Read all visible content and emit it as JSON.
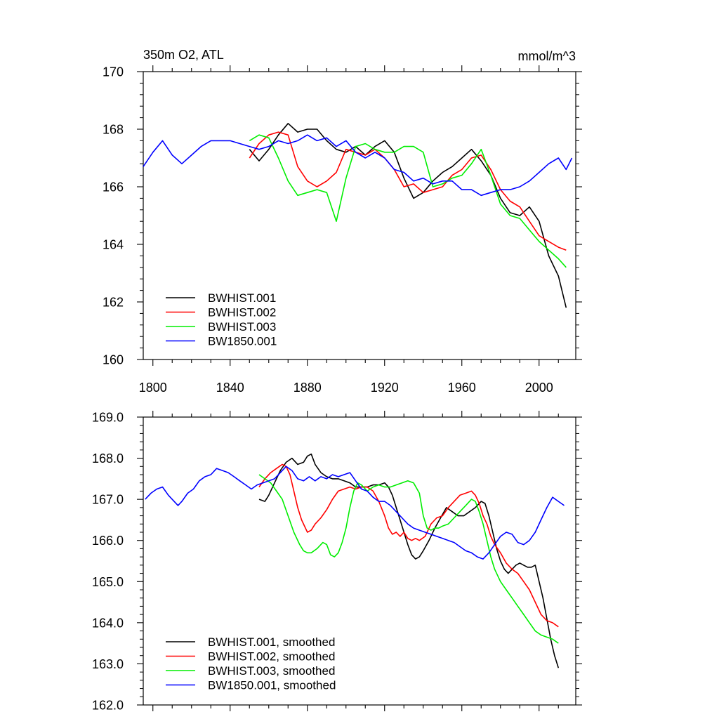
{
  "chart_data": [
    {
      "type": "line",
      "title_left": "350m O2, ATL",
      "title_right": "mmol/m^3",
      "xlim": [
        1795,
        2019
      ],
      "ylim": [
        160,
        170
      ],
      "xticks": [
        1800,
        1840,
        1880,
        1920,
        1960,
        2000
      ],
      "xtick_labels": [
        "1800",
        "1840",
        "1880",
        "1920",
        "1960",
        "2000"
      ],
      "yticks": [
        160,
        162,
        164,
        166,
        168,
        170
      ],
      "ytick_labels": [
        "160",
        "162",
        "164",
        "166",
        "168",
        "170"
      ],
      "legend_position": "bottom-left",
      "series": [
        {
          "name": "BWHIST.001",
          "color": "#000000",
          "x": [
            1850,
            1855,
            1860,
            1865,
            1870,
            1875,
            1880,
            1885,
            1890,
            1895,
            1900,
            1905,
            1910,
            1915,
            1920,
            1925,
            1930,
            1935,
            1940,
            1945,
            1950,
            1955,
            1960,
            1965,
            1970,
            1975,
            1980,
            1985,
            1990,
            1995,
            2000,
            2005,
            2010,
            2014
          ],
          "y": [
            167.3,
            166.9,
            167.3,
            167.8,
            168.2,
            167.9,
            168.0,
            168.0,
            167.6,
            167.3,
            167.2,
            167.4,
            167.1,
            167.4,
            167.6,
            167.2,
            166.3,
            165.6,
            165.8,
            166.2,
            166.5,
            166.7,
            167.0,
            167.3,
            166.9,
            166.4,
            165.6,
            165.1,
            165.0,
            165.3,
            164.8,
            163.6,
            162.9,
            161.8
          ]
        },
        {
          "name": "BWHIST.002",
          "color": "#ff0000",
          "x": [
            1850,
            1855,
            1860,
            1865,
            1870,
            1875,
            1880,
            1885,
            1890,
            1895,
            1900,
            1905,
            1910,
            1915,
            1920,
            1925,
            1930,
            1935,
            1940,
            1945,
            1950,
            1955,
            1960,
            1965,
            1970,
            1975,
            1980,
            1985,
            1990,
            1995,
            2000,
            2005,
            2010,
            2014
          ],
          "y": [
            167.0,
            167.5,
            167.8,
            167.9,
            167.8,
            166.7,
            166.2,
            166.0,
            166.2,
            166.5,
            167.3,
            167.2,
            167.1,
            167.3,
            167.0,
            166.6,
            166.0,
            166.1,
            165.8,
            165.9,
            166.0,
            166.4,
            166.6,
            167.0,
            167.1,
            166.6,
            165.9,
            165.5,
            165.3,
            164.8,
            164.3,
            164.1,
            163.9,
            163.8
          ]
        },
        {
          "name": "BWHIST.003",
          "color": "#00ee00",
          "x": [
            1850,
            1855,
            1860,
            1865,
            1870,
            1875,
            1880,
            1885,
            1890,
            1895,
            1900,
            1905,
            1910,
            1915,
            1920,
            1925,
            1930,
            1935,
            1940,
            1945,
            1950,
            1955,
            1960,
            1965,
            1970,
            1975,
            1980,
            1985,
            1990,
            1995,
            2000,
            2005,
            2010,
            2014
          ],
          "y": [
            167.6,
            167.8,
            167.7,
            167.0,
            166.2,
            165.7,
            165.8,
            165.9,
            165.8,
            164.8,
            166.3,
            167.4,
            167.5,
            167.3,
            167.2,
            167.2,
            167.4,
            167.4,
            167.2,
            166.0,
            166.1,
            166.3,
            166.4,
            166.8,
            167.3,
            166.4,
            165.4,
            165.0,
            164.9,
            164.5,
            164.1,
            163.8,
            163.5,
            163.2
          ]
        },
        {
          "name": "BW1850.001",
          "color": "#0000ff",
          "x": [
            1795,
            1800,
            1805,
            1810,
            1815,
            1820,
            1825,
            1830,
            1835,
            1840,
            1845,
            1850,
            1855,
            1860,
            1865,
            1870,
            1875,
            1880,
            1885,
            1890,
            1895,
            1900,
            1905,
            1910,
            1915,
            1920,
            1925,
            1930,
            1935,
            1940,
            1945,
            1950,
            1955,
            1960,
            1965,
            1970,
            1975,
            1980,
            1985,
            1990,
            1995,
            2000,
            2005,
            2010,
            2014,
            2017
          ],
          "y": [
            166.7,
            167.2,
            167.6,
            167.1,
            166.8,
            167.1,
            167.4,
            167.6,
            167.6,
            167.6,
            167.5,
            167.4,
            167.3,
            167.4,
            167.6,
            167.5,
            167.6,
            167.8,
            167.6,
            167.7,
            167.4,
            167.6,
            167.2,
            167.0,
            167.2,
            167.0,
            166.6,
            166.5,
            166.2,
            166.3,
            166.1,
            166.2,
            166.2,
            165.9,
            165.9,
            165.7,
            165.8,
            165.9,
            165.9,
            166.0,
            166.2,
            166.5,
            166.8,
            167.0,
            166.6,
            167.0
          ]
        }
      ]
    },
    {
      "type": "line",
      "xlim": [
        1795,
        2019
      ],
      "ylim": [
        162.0,
        169.0
      ],
      "xticks": [
        1800,
        1840,
        1880,
        1920,
        1960,
        2000
      ],
      "yticks": [
        162.0,
        163.0,
        164.0,
        165.0,
        166.0,
        167.0,
        168.0,
        169.0
      ],
      "ytick_labels": [
        "162.0",
        "163.0",
        "164.0",
        "165.0",
        "166.0",
        "167.0",
        "168.0",
        "169.0"
      ],
      "legend_position": "bottom-left",
      "series": [
        {
          "name": "BWHIST.001, smoothed",
          "color": "#000000",
          "x": [
            1855,
            1858,
            1860,
            1863,
            1866,
            1869,
            1872,
            1875,
            1878,
            1880,
            1882,
            1884,
            1887,
            1890,
            1893,
            1896,
            1899,
            1902,
            1905,
            1908,
            1911,
            1914,
            1917,
            1920,
            1922,
            1924,
            1926,
            1928,
            1930,
            1932,
            1934,
            1936,
            1938,
            1940,
            1943,
            1946,
            1949,
            1952,
            1955,
            1958,
            1961,
            1964,
            1967,
            1970,
            1972,
            1974,
            1976,
            1978,
            1980,
            1982,
            1984,
            1986,
            1988,
            1990,
            1992,
            1994,
            1996,
            1998,
            2000,
            2002,
            2004,
            2006,
            2008,
            2010
          ],
          "y": [
            167.0,
            166.95,
            167.1,
            167.4,
            167.7,
            167.9,
            168.0,
            167.85,
            167.9,
            168.05,
            168.1,
            167.85,
            167.65,
            167.55,
            167.5,
            167.5,
            167.45,
            167.4,
            167.3,
            167.3,
            167.3,
            167.35,
            167.35,
            167.4,
            167.3,
            167.1,
            166.8,
            166.5,
            166.2,
            165.9,
            165.65,
            165.55,
            165.6,
            165.75,
            166.0,
            166.3,
            166.55,
            166.8,
            166.7,
            166.6,
            166.6,
            166.7,
            166.8,
            166.95,
            166.9,
            166.6,
            166.2,
            165.8,
            165.5,
            165.3,
            165.2,
            165.3,
            165.4,
            165.45,
            165.4,
            165.35,
            165.35,
            165.4,
            165.0,
            164.6,
            164.1,
            163.6,
            163.2,
            162.9
          ]
        },
        {
          "name": "BWHIST.002, smoothed",
          "color": "#ff0000",
          "x": [
            1855,
            1858,
            1861,
            1864,
            1867,
            1869,
            1871,
            1873,
            1875,
            1877,
            1880,
            1882,
            1884,
            1887,
            1890,
            1893,
            1896,
            1899,
            1902,
            1905,
            1908,
            1911,
            1914,
            1917,
            1920,
            1922,
            1924,
            1926,
            1928,
            1930,
            1932,
            1934,
            1936,
            1938,
            1941,
            1944,
            1947,
            1950,
            1953,
            1956,
            1959,
            1962,
            1965,
            1967,
            1969,
            1971,
            1973,
            1975,
            1977,
            1980,
            1983,
            1986,
            1989,
            1992,
            1995,
            1998,
            2001,
            2004,
            2007,
            2010
          ],
          "y": [
            167.3,
            167.5,
            167.65,
            167.75,
            167.85,
            167.8,
            167.6,
            167.2,
            166.8,
            166.5,
            166.2,
            166.25,
            166.4,
            166.55,
            166.75,
            167.0,
            167.2,
            167.25,
            167.3,
            167.25,
            167.3,
            167.3,
            167.2,
            166.95,
            166.6,
            166.3,
            166.15,
            166.2,
            166.1,
            166.2,
            166.05,
            166.0,
            166.05,
            166.0,
            166.1,
            166.4,
            166.55,
            166.6,
            166.8,
            166.95,
            167.1,
            167.15,
            167.2,
            167.1,
            166.9,
            166.6,
            166.4,
            166.1,
            165.9,
            165.7,
            165.45,
            165.3,
            165.2,
            165.0,
            164.8,
            164.5,
            164.2,
            164.05,
            164.0,
            163.9
          ]
        },
        {
          "name": "BWHIST.003, smoothed",
          "color": "#00ee00",
          "x": [
            1855,
            1858,
            1861,
            1864,
            1867,
            1870,
            1873,
            1876,
            1878,
            1880,
            1882,
            1885,
            1888,
            1890,
            1892,
            1894,
            1896,
            1898,
            1900,
            1902,
            1904,
            1906,
            1908,
            1911,
            1914,
            1917,
            1920,
            1923,
            1926,
            1929,
            1932,
            1935,
            1938,
            1940,
            1942,
            1944,
            1946,
            1948,
            1950,
            1953,
            1956,
            1959,
            1962,
            1965,
            1967,
            1969,
            1971,
            1973,
            1975,
            1977,
            1980,
            1983,
            1986,
            1989,
            1992,
            1995,
            1998,
            2001,
            2004,
            2007,
            2010
          ],
          "y": [
            167.6,
            167.5,
            167.4,
            167.2,
            167.0,
            166.6,
            166.2,
            165.9,
            165.75,
            165.7,
            165.7,
            165.8,
            165.95,
            165.9,
            165.65,
            165.6,
            165.7,
            165.95,
            166.3,
            166.8,
            167.2,
            167.4,
            167.35,
            167.2,
            167.3,
            167.35,
            167.3,
            167.3,
            167.35,
            167.4,
            167.45,
            167.4,
            167.15,
            166.6,
            166.3,
            166.25,
            166.3,
            166.3,
            166.35,
            166.4,
            166.55,
            166.7,
            166.85,
            167.0,
            166.95,
            166.7,
            166.4,
            166.0,
            165.6,
            165.3,
            165.0,
            164.8,
            164.6,
            164.4,
            164.2,
            164.0,
            163.8,
            163.7,
            163.65,
            163.6,
            163.5
          ]
        },
        {
          "name": "BW1850.001, smoothed",
          "color": "#0000ff",
          "x": [
            1796,
            1799,
            1802,
            1805,
            1808,
            1811,
            1813,
            1815,
            1818,
            1821,
            1824,
            1827,
            1830,
            1833,
            1836,
            1839,
            1842,
            1845,
            1848,
            1851,
            1854,
            1857,
            1860,
            1863,
            1866,
            1869,
            1872,
            1875,
            1878,
            1881,
            1884,
            1887,
            1890,
            1893,
            1896,
            1899,
            1902,
            1905,
            1908,
            1911,
            1914,
            1917,
            1920,
            1923,
            1926,
            1929,
            1932,
            1935,
            1938,
            1941,
            1944,
            1947,
            1950,
            1953,
            1956,
            1959,
            1962,
            1965,
            1968,
            1971,
            1974,
            1977,
            1980,
            1983,
            1986,
            1989,
            1992,
            1995,
            1998,
            2001,
            2004,
            2007,
            2010,
            2013
          ],
          "y": [
            167.0,
            167.15,
            167.25,
            167.3,
            167.1,
            166.95,
            166.85,
            166.95,
            167.15,
            167.25,
            167.45,
            167.55,
            167.6,
            167.75,
            167.7,
            167.65,
            167.55,
            167.45,
            167.35,
            167.25,
            167.35,
            167.4,
            167.45,
            167.5,
            167.65,
            167.8,
            167.7,
            167.5,
            167.45,
            167.55,
            167.45,
            167.55,
            167.5,
            167.6,
            167.55,
            167.6,
            167.65,
            167.45,
            167.25,
            167.2,
            167.05,
            166.95,
            166.95,
            166.85,
            166.7,
            166.55,
            166.4,
            166.3,
            166.25,
            166.2,
            166.15,
            166.1,
            166.05,
            166.0,
            165.95,
            165.85,
            165.75,
            165.7,
            165.6,
            165.55,
            165.7,
            165.9,
            166.1,
            166.2,
            166.15,
            165.95,
            165.9,
            166.0,
            166.2,
            166.5,
            166.8,
            167.05,
            166.95,
            166.85
          ]
        }
      ]
    }
  ]
}
